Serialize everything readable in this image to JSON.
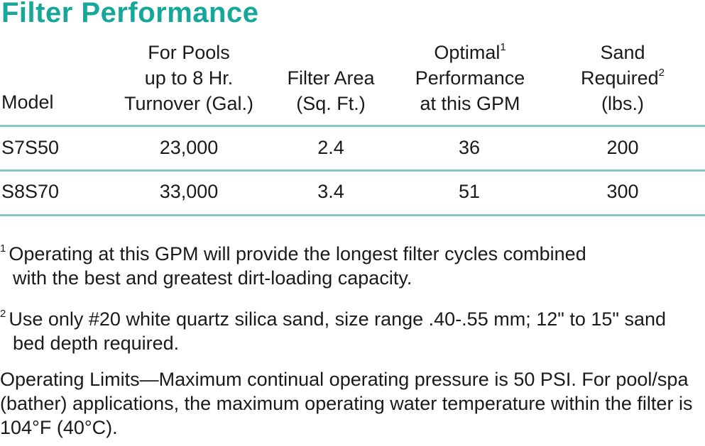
{
  "title": "Filter Performance",
  "colors": {
    "accent": "#17a79a",
    "rule": "#7fcbc4",
    "text": "#1a1a1a"
  },
  "table": {
    "headers": {
      "model": "Model",
      "pools": [
        "For Pools",
        "up to 8 Hr.",
        "Turnover (Gal.)"
      ],
      "area": [
        "Filter Area",
        "(Sq. Ft.)"
      ],
      "gpm": [
        "Optimal",
        "Performance",
        "at this GPM"
      ],
      "gpm_mark": "1",
      "sand": [
        "Sand",
        "Required",
        "(lbs.)"
      ],
      "sand_mark": "2"
    },
    "rows": [
      {
        "model": "S7S50",
        "pools": "23,000",
        "area": "2.4",
        "gpm": "36",
        "sand": "200"
      },
      {
        "model": "S8S70",
        "pools": "33,000",
        "area": "3.4",
        "gpm": "51",
        "sand": "300"
      }
    ]
  },
  "footnotes": [
    {
      "mark": "1",
      "line1": "Operating at this GPM will provide the longest filter cycles combined",
      "line2": "with the best and greatest dirt-loading capacity."
    },
    {
      "mark": "2",
      "line1": "Use only #20 white quartz silica sand, size range .40-.55 mm; 12\" to 15\" sand",
      "line2": "bed depth required."
    }
  ],
  "limits": {
    "label": "Operating Limits",
    "dash": "—",
    "text": "Maximum continual operating pressure is 50 PSI. For pool/spa (bather) applications, the maximum operating water temperature within the filter is 104°F (40°C)."
  }
}
